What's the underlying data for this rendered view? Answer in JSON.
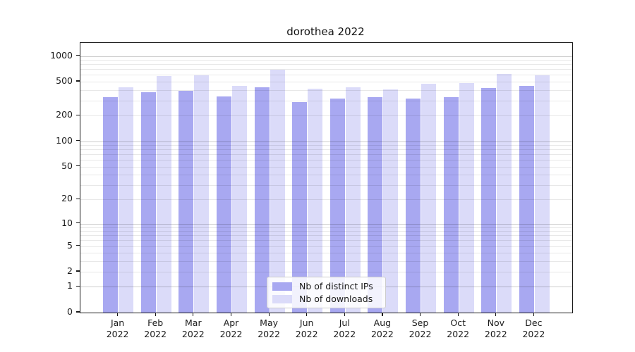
{
  "chart_data": {
    "type": "bar",
    "title": "dorothea 2022",
    "categories": [
      "Jan",
      "Feb",
      "Mar",
      "Apr",
      "May",
      "Jun",
      "Jul",
      "Aug",
      "Sep",
      "Oct",
      "Nov",
      "Dec"
    ],
    "category_year": "2022",
    "series": [
      {
        "name": "Nb of distinct IPs",
        "color": "#a8a8f1",
        "values": [
          331,
          377,
          392,
          337,
          431,
          289,
          317,
          327,
          320,
          332,
          421,
          448
        ]
      },
      {
        "name": "Nb of downloads",
        "color": "#dbdbf9",
        "values": [
          431,
          585,
          595,
          449,
          692,
          414,
          428,
          410,
          471,
          478,
          620,
          599
        ]
      }
    ],
    "xlabel": "",
    "ylabel": "",
    "yscale": "log1p",
    "yticks": [
      0,
      1,
      2,
      5,
      10,
      20,
      50,
      100,
      200,
      500,
      1000
    ],
    "ylim": [
      0,
      1420
    ],
    "grid": "both",
    "legend_position": "lower center"
  }
}
